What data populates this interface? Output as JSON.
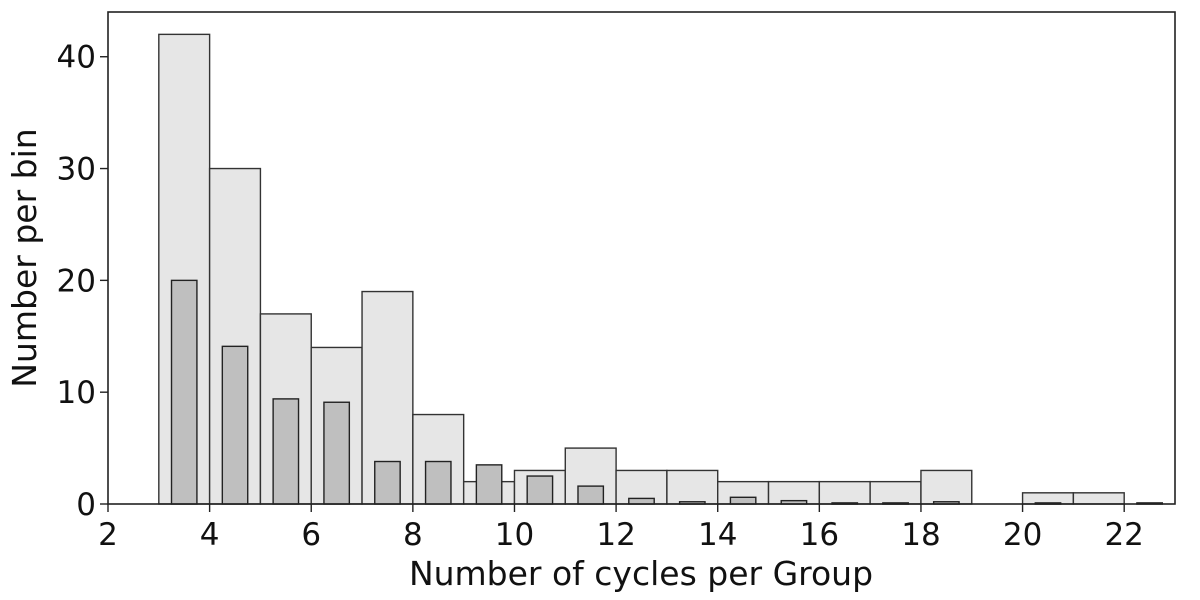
{
  "chart_data": {
    "type": "bar",
    "title": "",
    "xlabel": "Number of cycles per Group",
    "ylabel": "Number per bin",
    "xlim": [
      2,
      23
    ],
    "ylim": [
      0,
      44
    ],
    "xticks": [
      2,
      4,
      6,
      8,
      10,
      12,
      14,
      16,
      18,
      20,
      22
    ],
    "yticks": [
      0,
      10,
      20,
      30,
      40
    ],
    "grid": false,
    "legend": "none",
    "series": [
      {
        "kind": "histogram",
        "bins": [
          [
            3,
            4
          ],
          [
            4,
            5
          ],
          [
            5,
            6
          ],
          [
            6,
            7
          ],
          [
            7,
            8
          ],
          [
            8,
            9
          ],
          [
            9,
            10
          ],
          [
            10,
            11
          ],
          [
            11,
            12
          ],
          [
            12,
            13
          ],
          [
            13,
            14
          ],
          [
            14,
            15
          ],
          [
            15,
            16
          ],
          [
            16,
            17
          ],
          [
            17,
            18
          ],
          [
            18,
            19
          ],
          [
            19,
            20
          ],
          [
            20,
            21
          ],
          [
            21,
            22
          ],
          [
            22,
            23
          ]
        ],
        "values": [
          42,
          30,
          17,
          14,
          19,
          8,
          2,
          3,
          5,
          3,
          3,
          2,
          2,
          2,
          2,
          3,
          0,
          1,
          1,
          0
        ],
        "color": "#e6e6e6",
        "edgecolor": "#333333"
      },
      {
        "kind": "bar",
        "x": [
          3.5,
          4.5,
          5.5,
          6.5,
          7.5,
          8.5,
          9.5,
          10.5,
          11.5,
          12.5,
          13.5,
          14.5,
          15.5,
          16.5,
          17.5,
          18.5,
          19.5,
          20.5,
          21.5,
          22.5
        ],
        "values": [
          20,
          14.1,
          9.4,
          9.1,
          3.8,
          3.8,
          3.5,
          2.5,
          1.6,
          0.5,
          0.2,
          0.6,
          0.3,
          0.1,
          0.1,
          0.2,
          0.0,
          0.1,
          0.0,
          0.1
        ],
        "color": "#bfbfbf",
        "edgecolor": "#222222"
      }
    ]
  }
}
